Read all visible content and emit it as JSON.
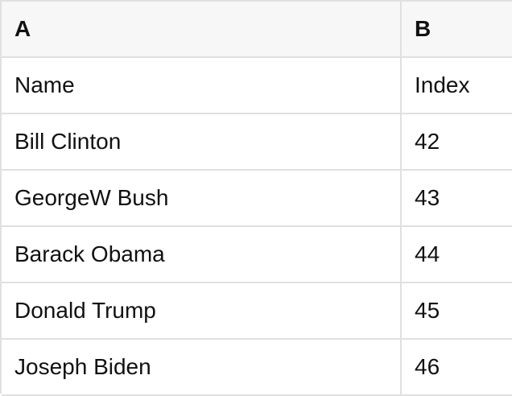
{
  "sheet": {
    "column_headers": [
      {
        "label": "A"
      },
      {
        "label": "B"
      }
    ],
    "rows": [
      {
        "a": "Name",
        "b": "Index"
      },
      {
        "a": "Bill Clinton",
        "b": "42"
      },
      {
        "a": "GeorgeW Bush",
        "b": "43"
      },
      {
        "a": "Barack Obama",
        "b": "44"
      },
      {
        "a": "Donald Trump",
        "b": "45"
      },
      {
        "a": "Joseph Biden",
        "b": "46"
      }
    ],
    "colors": {
      "header_bg": "#f7f7f7",
      "grid_border": "#e0e0e0",
      "text": "#111111",
      "row_bg": "#ffffff"
    }
  }
}
